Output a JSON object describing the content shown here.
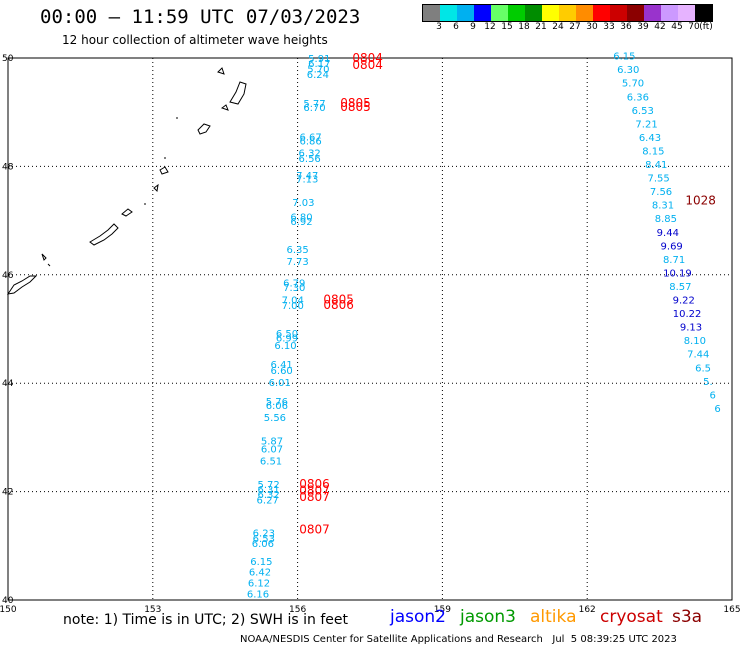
{
  "title": "00:00 — 11:59 UTC 07/03/2023",
  "subtitle": "12 hour collection of altimeter wave heights",
  "colorbar": {
    "unit": "(ft)",
    "swatches": [
      "#7f7f7f",
      "#00e6e6",
      "#00b0f0",
      "#0000ff",
      "#66ff66",
      "#00cc00",
      "#008c00",
      "#ffff00",
      "#ffcc00",
      "#ff8c00",
      "#ff0000",
      "#cc0000",
      "#8b0000",
      "#9933cc",
      "#cc99ff",
      "#e6b3ff",
      "#000000"
    ],
    "labels": [
      "3",
      "6",
      "9",
      "12",
      "15",
      "18",
      "21",
      "24",
      "27",
      "30",
      "33",
      "36",
      "39",
      "42",
      "45",
      "70"
    ]
  },
  "axes": {
    "lon_labels": [
      "150",
      "153",
      "156",
      "159",
      "162",
      "165"
    ],
    "lat_labels": [
      "50",
      "48",
      "46",
      "44",
      "42",
      "40"
    ]
  },
  "tracks": {
    "west": {
      "color": "#00b0f0",
      "points": [
        {
          "lat": 49.93,
          "lon": 156.45,
          "v": "5.91"
        },
        {
          "lat": 49.83,
          "lon": 156.45,
          "v": "6.17"
        },
        {
          "lat": 49.73,
          "lon": 156.43,
          "v": "5.70"
        },
        {
          "lat": 49.63,
          "lon": 156.42,
          "v": "6.24"
        },
        {
          "lat": 49.1,
          "lon": 156.35,
          "v": "5.77"
        },
        {
          "lat": 49.02,
          "lon": 156.35,
          "v": "6.70"
        },
        {
          "lat": 48.48,
          "lon": 156.27,
          "v": "6.67"
        },
        {
          "lat": 48.4,
          "lon": 156.27,
          "v": "6.86"
        },
        {
          "lat": 48.18,
          "lon": 156.25,
          "v": "6.32"
        },
        {
          "lat": 48.08,
          "lon": 156.25,
          "v": "6.56"
        },
        {
          "lat": 47.77,
          "lon": 156.2,
          "v": "7.47"
        },
        {
          "lat": 47.7,
          "lon": 156.2,
          "v": "7.13"
        },
        {
          "lat": 47.27,
          "lon": 156.12,
          "v": "7.03"
        },
        {
          "lat": 47.0,
          "lon": 156.08,
          "v": "6.80"
        },
        {
          "lat": 46.92,
          "lon": 156.08,
          "v": "6.92"
        },
        {
          "lat": 46.4,
          "lon": 156.0,
          "v": "6.35"
        },
        {
          "lat": 46.18,
          "lon": 156.0,
          "v": "7.73"
        },
        {
          "lat": 45.78,
          "lon": 155.93,
          "v": "6.79"
        },
        {
          "lat": 45.7,
          "lon": 155.93,
          "v": "7.30"
        },
        {
          "lat": 45.47,
          "lon": 155.9,
          "v": "7.04"
        },
        {
          "lat": 45.37,
          "lon": 155.9,
          "v": "7.00"
        },
        {
          "lat": 44.85,
          "lon": 155.78,
          "v": "6.50"
        },
        {
          "lat": 44.77,
          "lon": 155.78,
          "v": "6.99"
        },
        {
          "lat": 44.63,
          "lon": 155.75,
          "v": "6.10"
        },
        {
          "lat": 44.28,
          "lon": 155.67,
          "v": "6.41"
        },
        {
          "lat": 44.17,
          "lon": 155.67,
          "v": "6.60"
        },
        {
          "lat": 43.95,
          "lon": 155.63,
          "v": "6.01"
        },
        {
          "lat": 43.6,
          "lon": 155.57,
          "v": "5.76"
        },
        {
          "lat": 43.52,
          "lon": 155.57,
          "v": "6.06"
        },
        {
          "lat": 43.3,
          "lon": 155.53,
          "v": "5.56"
        },
        {
          "lat": 42.87,
          "lon": 155.47,
          "v": "5.87"
        },
        {
          "lat": 42.72,
          "lon": 155.47,
          "v": "6.07"
        },
        {
          "lat": 42.5,
          "lon": 155.45,
          "v": "6.51"
        },
        {
          "lat": 42.07,
          "lon": 155.4,
          "v": "5.72"
        },
        {
          "lat": 41.97,
          "lon": 155.4,
          "v": "6.31"
        },
        {
          "lat": 41.88,
          "lon": 155.4,
          "v": "6.32"
        },
        {
          "lat": 41.78,
          "lon": 155.38,
          "v": "6.27"
        },
        {
          "lat": 41.17,
          "lon": 155.3,
          "v": "6.23"
        },
        {
          "lat": 41.07,
          "lon": 155.3,
          "v": "6.53"
        },
        {
          "lat": 40.98,
          "lon": 155.28,
          "v": "6.06"
        },
        {
          "lat": 40.65,
          "lon": 155.25,
          "v": "6.15"
        },
        {
          "lat": 40.45,
          "lon": 155.22,
          "v": "6.42"
        },
        {
          "lat": 40.25,
          "lon": 155.2,
          "v": "6.12"
        },
        {
          "lat": 40.05,
          "lon": 155.18,
          "v": "6.16"
        }
      ]
    },
    "east": {
      "points": [
        {
          "lat": 49.97,
          "lon": 162.77,
          "v": "6.15",
          "c": "#00b0f0"
        },
        {
          "lat": 49.72,
          "lon": 162.85,
          "v": "6.30",
          "c": "#00b0f0"
        },
        {
          "lat": 49.47,
          "lon": 162.95,
          "v": "5.70",
          "c": "#00b0f0"
        },
        {
          "lat": 49.22,
          "lon": 163.05,
          "v": "6.36",
          "c": "#00b0f0"
        },
        {
          "lat": 48.97,
          "lon": 163.15,
          "v": "6.53",
          "c": "#00b0f0"
        },
        {
          "lat": 48.72,
          "lon": 163.23,
          "v": "7.21",
          "c": "#00b0f0"
        },
        {
          "lat": 48.47,
          "lon": 163.3,
          "v": "6.43",
          "c": "#00b0f0"
        },
        {
          "lat": 48.22,
          "lon": 163.37,
          "v": "8.15",
          "c": "#00b0f0"
        },
        {
          "lat": 47.97,
          "lon": 163.43,
          "v": "8.41",
          "c": "#00b0f0"
        },
        {
          "lat": 47.72,
          "lon": 163.48,
          "v": "7.55",
          "c": "#00b0f0"
        },
        {
          "lat": 47.47,
          "lon": 163.53,
          "v": "7.56",
          "c": "#00b0f0"
        },
        {
          "lat": 47.22,
          "lon": 163.57,
          "v": "8.31",
          "c": "#00b0f0"
        },
        {
          "lat": 46.97,
          "lon": 163.63,
          "v": "8.85",
          "c": "#00b0f0"
        },
        {
          "lat": 46.72,
          "lon": 163.67,
          "v": "9.44",
          "c": "#0000cc"
        },
        {
          "lat": 46.47,
          "lon": 163.75,
          "v": "9.69",
          "c": "#0000cc"
        },
        {
          "lat": 46.22,
          "lon": 163.8,
          "v": "8.71",
          "c": "#00b0f0"
        },
        {
          "lat": 45.97,
          "lon": 163.87,
          "v": "10.19",
          "c": "#0000cc"
        },
        {
          "lat": 45.72,
          "lon": 163.93,
          "v": "8.57",
          "c": "#00b0f0"
        },
        {
          "lat": 45.47,
          "lon": 164.0,
          "v": "9.22",
          "c": "#0000cc"
        },
        {
          "lat": 45.22,
          "lon": 164.07,
          "v": "10.22",
          "c": "#0000cc"
        },
        {
          "lat": 44.97,
          "lon": 164.15,
          "v": "9.13",
          "c": "#0000cc"
        },
        {
          "lat": 44.72,
          "lon": 164.23,
          "v": "8.10",
          "c": "#00b0f0"
        },
        {
          "lat": 44.47,
          "lon": 164.3,
          "v": "7.44",
          "c": "#00b0f0"
        },
        {
          "lat": 44.22,
          "lon": 164.4,
          "v": "6.5",
          "c": "#00b0f0"
        },
        {
          "lat": 43.97,
          "lon": 164.5,
          "v": "5.",
          "c": "#00b0f0"
        },
        {
          "lat": 43.72,
          "lon": 164.6,
          "v": "6",
          "c": "#00b0f0"
        },
        {
          "lat": 43.47,
          "lon": 164.7,
          "v": "6",
          "c": "#00b0f0"
        }
      ]
    }
  },
  "time_labels": [
    {
      "lat": 49.93,
      "lon": 157.45,
      "v": "0804",
      "c": "#ff0000"
    },
    {
      "lat": 49.8,
      "lon": 157.45,
      "v": "0804",
      "c": "#ff0000"
    },
    {
      "lat": 49.1,
      "lon": 157.2,
      "v": "0805",
      "c": "#ff0000"
    },
    {
      "lat": 49.02,
      "lon": 157.2,
      "v": "0805",
      "c": "#ff0000"
    },
    {
      "lat": 47.3,
      "lon": 164.35,
      "v": "1028",
      "c": "#8b0000"
    },
    {
      "lat": 45.47,
      "lon": 156.85,
      "v": "0805",
      "c": "#ff0000"
    },
    {
      "lat": 45.37,
      "lon": 156.85,
      "v": "0806",
      "c": "#ff0000"
    },
    {
      "lat": 42.07,
      "lon": 156.35,
      "v": "0806",
      "c": "#ff0000"
    },
    {
      "lat": 41.95,
      "lon": 156.35,
      "v": "0807",
      "c": "#ff0000"
    },
    {
      "lat": 41.83,
      "lon": 156.35,
      "v": "0807",
      "c": "#ff0000"
    },
    {
      "lat": 41.23,
      "lon": 156.35,
      "v": "0807",
      "c": "#ff0000"
    }
  ],
  "footer": {
    "note": "note: 1) Time is in UTC; 2) SWH is in feet",
    "satellites": [
      {
        "name": "jason2",
        "color": "#0000ff"
      },
      {
        "name": "jason3",
        "color": "#009900"
      },
      {
        "name": "altika",
        "color": "#ff9900"
      },
      {
        "name": "cryosat",
        "color": "#cc0000"
      },
      {
        "name": "s3a",
        "color": "#8b0000"
      }
    ],
    "credit": "NOAA/NESDIS Center for Satellite Applications and Research   Jul  5 08:39:25 UTC 2023"
  }
}
